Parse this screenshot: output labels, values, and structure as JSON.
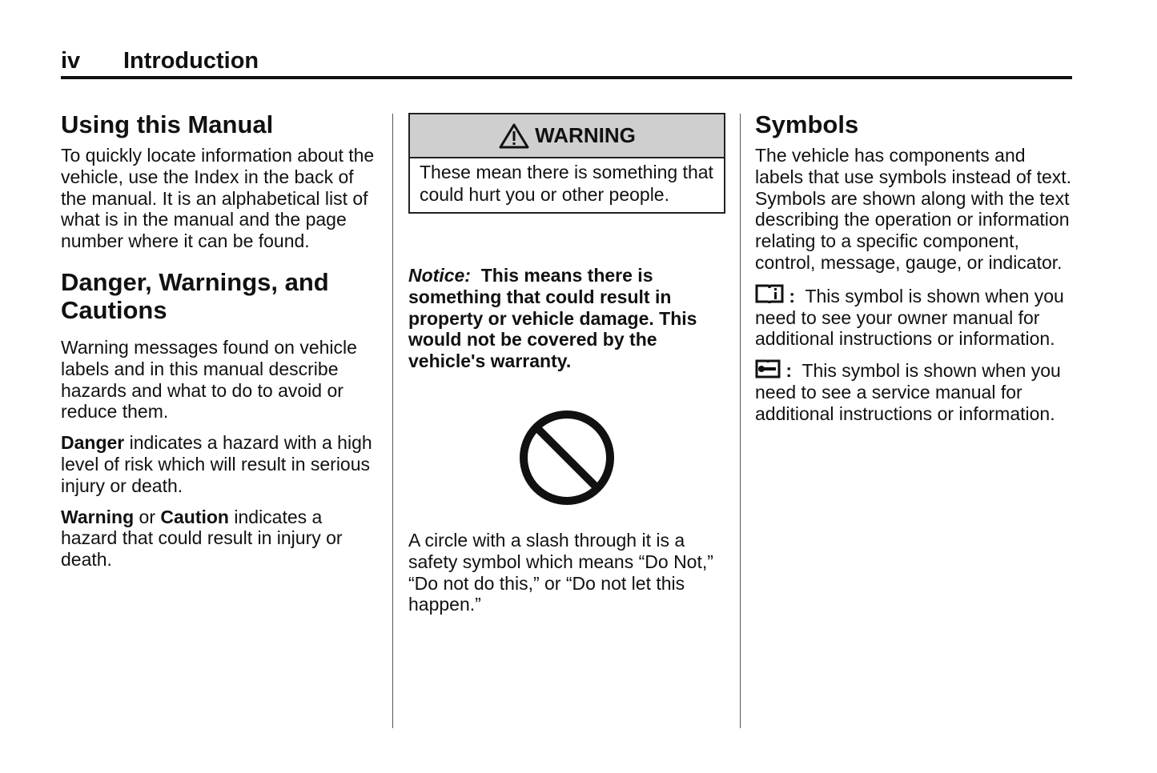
{
  "header": {
    "page_number": "iv",
    "section": "Introduction"
  },
  "col1": {
    "heading1": "Using this Manual",
    "para1": "To quickly locate information about the vehicle, use the Index in the back of the manual. It is an alphabetical list of what is in the manual and the page number where it can be found.",
    "heading2": "Danger, Warnings, and Cautions",
    "para2": "Warning messages found on vehicle labels and in this manual describe hazards and what to do to avoid or reduce them.",
    "para3_bold": "Danger",
    "para3_rest": " indicates a hazard with a high level of risk which will result in serious injury or death.",
    "para4_bold1": "Warning",
    "para4_mid": " or ",
    "para4_bold2": "Caution",
    "para4_rest": " indicates a hazard that could result in injury or death."
  },
  "col2": {
    "warning_title": "WARNING",
    "warning_body": "These mean there is something that could hurt you or other people.",
    "notice_label": "Notice:",
    "notice_text": "This means there is something that could result in property or vehicle damage. This would not be covered by the vehicle's warranty.",
    "circle_slash_text": "A circle with a slash through it is a safety symbol which means “Do Not,” “Do not do this,” or “Do not let this happen.”"
  },
  "col3": {
    "heading": "Symbols",
    "para1": "The vehicle has components and labels that use symbols instead of text. Symbols are shown along with the text describing the operation or information relating to a specific component, control, message, gauge, or indicator.",
    "owner_manual_text": "This symbol is shown when you need to see your owner manual for additional instructions or information.",
    "service_manual_text": "This symbol is shown when you need to see a service manual for additional instructions or information.",
    "colon": ":"
  }
}
